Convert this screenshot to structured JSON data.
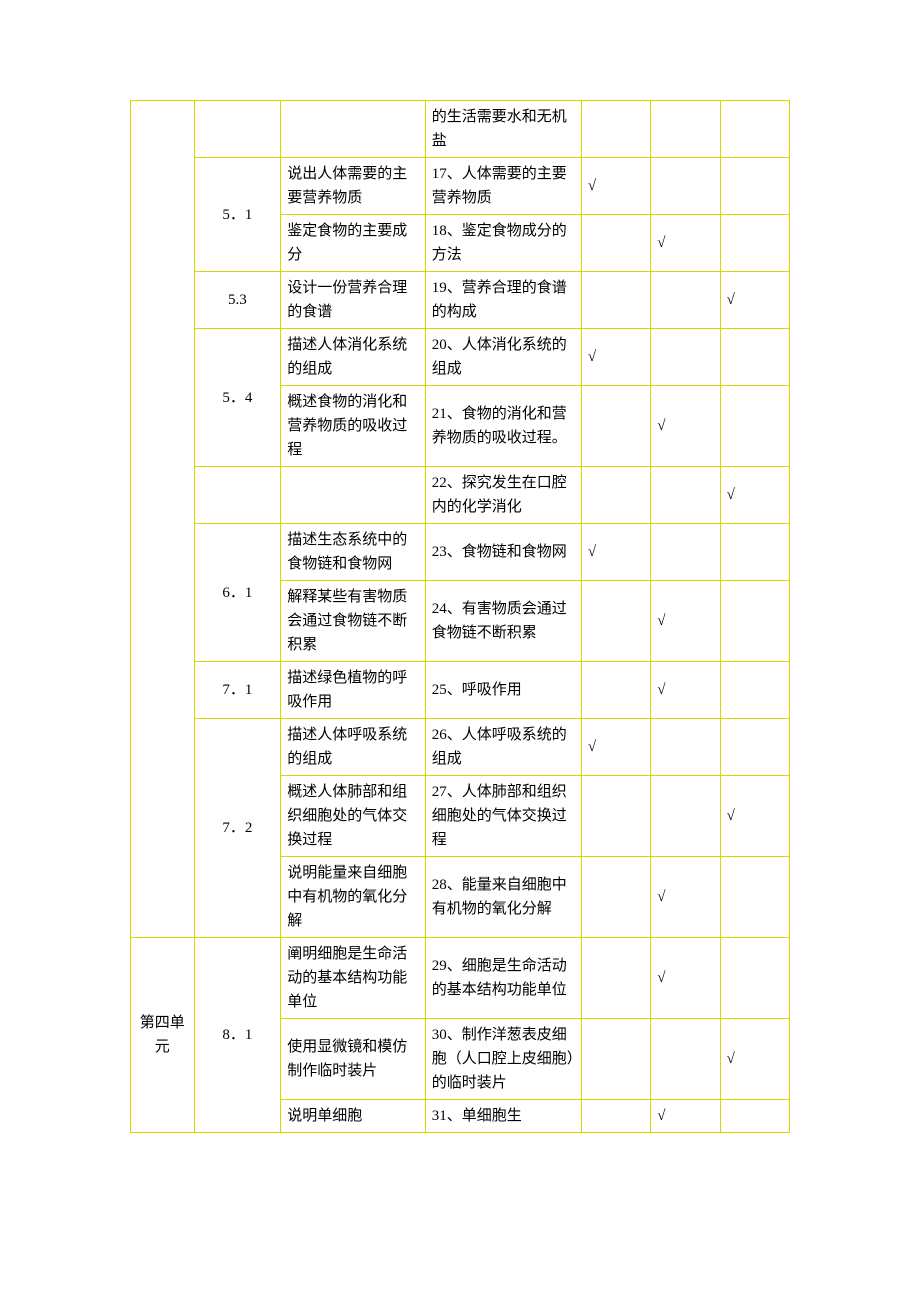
{
  "table": {
    "border_color": "#d6d600",
    "font_family": "SimSun",
    "font_size": 15,
    "text_color": "#000000",
    "background_color": "#ffffff",
    "check_mark": "√",
    "rows": [
      {
        "col1": "",
        "col2": "",
        "col3": "",
        "col4": "的生活需要水和无机盐",
        "col5": "",
        "col6": "",
        "col7": "",
        "spans": {
          "col1": 0,
          "col2": 0,
          "col3": 1,
          "col4": 1,
          "col5": 1,
          "col6": 1,
          "col7": 1
        }
      },
      {
        "col2": "5．1",
        "col3": "说出人体需要的主要营养物质",
        "col4": "17、人体需要的主要营养物质",
        "col5": "√",
        "col6": "",
        "col7": "",
        "spans": {
          "col2": 2
        }
      },
      {
        "col3": "鉴定食物的主要成分",
        "col4": "18、鉴定食物成分的方法",
        "col5": "",
        "col6": "√",
        "col7": ""
      },
      {
        "col2": "5.3",
        "col3": "设计一份营养合理的食谱",
        "col4": "19、营养合理的食谱的构成",
        "col5": "",
        "col6": "",
        "col7": "√"
      },
      {
        "col2": "5．4",
        "col3": "描述人体消化系统的组成",
        "col4": "20、人体消化系统的组成",
        "col5": "√",
        "col6": "",
        "col7": "",
        "spans": {
          "col2": 2
        }
      },
      {
        "col3": "概述食物的消化和营养物质的吸收过程",
        "col4": "21、食物的消化和营养物质的吸收过程。",
        "col5": "",
        "col6": "√",
        "col7": ""
      },
      {
        "col2": "",
        "col3": "",
        "col4": "22、探究发生在口腔内的化学消化",
        "col5": "",
        "col6": "",
        "col7": "√"
      },
      {
        "col2": "6．1",
        "col3": "描述生态系统中的食物链和食物网",
        "col4": "23、食物链和食物网",
        "col5": "√",
        "col6": "",
        "col7": "",
        "spans": {
          "col2": 2
        }
      },
      {
        "col3": "解释某些有害物质会通过食物链不断积累",
        "col4": "24、有害物质会通过食物链不断积累",
        "col5": "",
        "col6": "√",
        "col7": ""
      },
      {
        "col2": "7．1",
        "col3": "描述绿色植物的呼吸作用",
        "col4": "25、呼吸作用",
        "col5": "",
        "col6": "√",
        "col7": ""
      },
      {
        "col2": "7．2",
        "col3": "描述人体呼吸系统的组成",
        "col4": "26、人体呼吸系统的组成",
        "col5": "√",
        "col6": "",
        "col7": "",
        "spans": {
          "col2": 3
        }
      },
      {
        "col3": "概述人体肺部和组织细胞处的气体交换过程",
        "col4": "27、人体肺部和组织细胞处的气体交换过程",
        "col5": "",
        "col6": "",
        "col7": "√"
      },
      {
        "col3": "说明能量来自细胞中有机物的氧化分解",
        "col4": "28、能量来自细胞中有机物的氧化分解",
        "col5": "",
        "col6": "√",
        "col7": ""
      },
      {
        "col1": "第四单元",
        "col2": "8．1",
        "col3": "阐明细胞是生命活动的基本结构功能单位",
        "col4": "29、细胞是生命活动的基本结构功能单位",
        "col5": "",
        "col6": "√",
        "col7": "",
        "spans": {
          "col1": 3,
          "col2": 3
        }
      },
      {
        "col3": "使用显微镜和模仿制作临时装片",
        "col4": "30、制作洋葱表皮细胞（人口腔上皮细胞）的临时装片",
        "col5": "",
        "col6": "",
        "col7": "√"
      },
      {
        "col3": "说明单细胞",
        "col4": "31、单细胞生",
        "col5": "",
        "col6": "√",
        "col7": ""
      }
    ]
  }
}
